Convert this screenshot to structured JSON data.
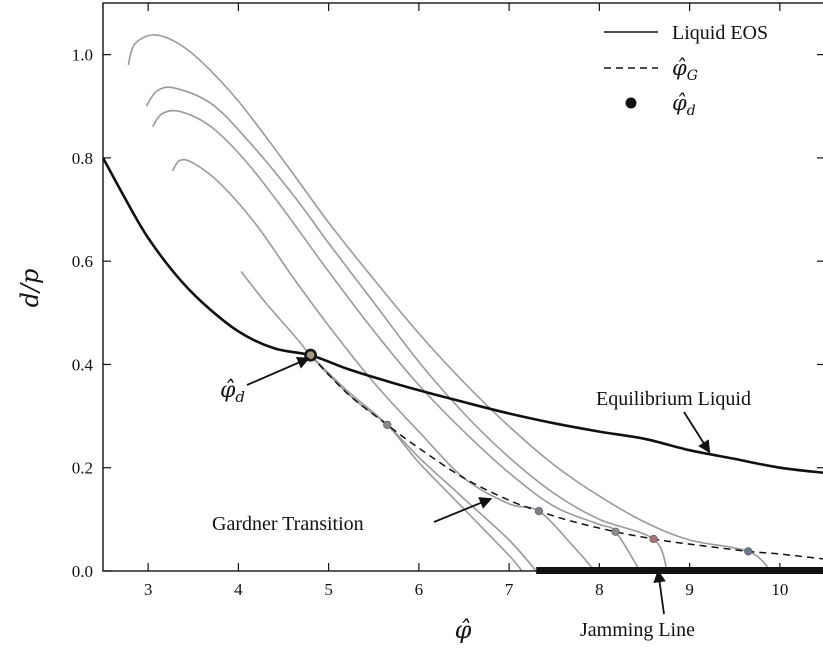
{
  "chart_data": {
    "type": "line",
    "xlabel": "φ̂",
    "ylabel": "d/p",
    "xlim": [
      2.5,
      10.5
    ],
    "ylim": [
      0.0,
      1.1
    ],
    "x_ticks": [
      3,
      4,
      5,
      6,
      7,
      8,
      9,
      10
    ],
    "y_ticks": [
      0.0,
      0.2,
      0.4,
      0.6,
      0.8,
      1.0
    ],
    "x_tick_labels": [
      "3",
      "4",
      "5",
      "6",
      "7",
      "8",
      "9",
      "10"
    ],
    "y_tick_labels": [
      "0.0",
      "0.2",
      "0.4",
      "0.6",
      "0.8",
      "1.0"
    ],
    "grid": false,
    "legend": {
      "placement": "top-right",
      "entries": [
        {
          "label": "Liquid EOS",
          "style": "solid"
        },
        {
          "label_main": "φ̂",
          "label_sub": "G",
          "style": "dashed"
        },
        {
          "label_main": "φ̂",
          "label_sub": "d",
          "style": "dot"
        }
      ]
    },
    "series": [
      {
        "style": "liquid",
        "color": "#111111",
        "x": [
          2.5,
          2.8,
          3.0,
          3.3,
          3.6,
          4.0,
          4.4,
          4.8,
          5.2,
          5.6,
          6.0,
          6.5,
          7.0,
          7.5,
          8.0,
          8.5,
          9.0,
          9.5,
          10.0,
          10.5
        ],
        "y": [
          0.8,
          0.704,
          0.645,
          0.575,
          0.52,
          0.464,
          0.431,
          0.418,
          0.392,
          0.37,
          0.35,
          0.327,
          0.305,
          0.286,
          0.27,
          0.256,
          0.234,
          0.217,
          0.2,
          0.19
        ]
      },
      {
        "style": "gardner",
        "color": "#111111",
        "x": [
          4.8,
          5.2,
          5.65,
          6.0,
          6.5,
          7.0,
          7.33,
          7.7,
          8.18,
          8.6,
          9.0,
          9.65,
          10.0,
          10.5
        ],
        "y": [
          0.418,
          0.345,
          0.283,
          0.238,
          0.18,
          0.137,
          0.116,
          0.096,
          0.076,
          0.062,
          0.052,
          0.038,
          0.033,
          0.023
        ]
      },
      {
        "style": "compression",
        "color": "#9a9a9a",
        "x": [
          4.03,
          4.3,
          4.6,
          4.8,
          5.0,
          5.3,
          5.65,
          6.0,
          6.5,
          7.0,
          7.3
        ],
        "y": [
          0.58,
          0.52,
          0.46,
          0.418,
          0.38,
          0.33,
          0.283,
          0.22,
          0.14,
          0.06,
          0.0
        ]
      },
      {
        "style": "compression",
        "color": "#9a9a9a",
        "x": [
          4.8,
          5.2,
          5.65,
          6.0,
          6.5,
          7.0,
          7.14
        ],
        "y": [
          0.418,
          0.35,
          0.283,
          0.21,
          0.12,
          0.03,
          0.0
        ]
      },
      {
        "style": "compression",
        "color": "#9a9a9a",
        "x": [
          3.27,
          3.35,
          3.5,
          3.8,
          4.2,
          4.6,
          5.0,
          5.5,
          6.0,
          6.5,
          7.0,
          7.33,
          7.7,
          7.95
        ],
        "y": [
          0.775,
          0.795,
          0.79,
          0.75,
          0.67,
          0.57,
          0.475,
          0.365,
          0.27,
          0.18,
          0.13,
          0.116,
          0.05,
          0.0
        ]
      },
      {
        "style": "compression",
        "color": "#9a9a9a",
        "x": [
          3.05,
          3.15,
          3.35,
          3.7,
          4.1,
          4.5,
          5.0,
          5.5,
          6.0,
          6.5,
          7.0,
          7.5,
          8.0,
          8.18,
          8.45
        ],
        "y": [
          0.86,
          0.885,
          0.89,
          0.86,
          0.79,
          0.7,
          0.58,
          0.465,
          0.36,
          0.27,
          0.19,
          0.125,
          0.09,
          0.076,
          0.0
        ]
      },
      {
        "style": "compression",
        "color": "#9a9a9a",
        "x": [
          2.98,
          3.1,
          3.3,
          3.7,
          4.1,
          4.6,
          5.0,
          5.5,
          6.0,
          6.5,
          7.0,
          7.5,
          8.0,
          8.6,
          8.75
        ],
        "y": [
          0.9,
          0.93,
          0.935,
          0.905,
          0.835,
          0.73,
          0.635,
          0.52,
          0.405,
          0.305,
          0.22,
          0.15,
          0.1,
          0.062,
          0.0
        ]
      },
      {
        "style": "compression",
        "color": "#9a9a9a",
        "x": [
          2.78,
          2.85,
          3.05,
          3.3,
          3.6,
          4.0,
          4.5,
          5.0,
          5.5,
          6.0,
          6.5,
          7.0,
          7.5,
          8.0,
          8.5,
          9.0,
          9.65,
          9.9
        ],
        "y": [
          0.98,
          1.02,
          1.038,
          1.025,
          0.985,
          0.91,
          0.795,
          0.675,
          0.565,
          0.46,
          0.365,
          0.28,
          0.205,
          0.145,
          0.095,
          0.06,
          0.038,
          0.0
        ]
      }
    ],
    "markers": {
      "phi_d": {
        "x": 4.8,
        "y": 0.418,
        "color": "#1a1a1a"
      },
      "gardner_points": [
        {
          "x": 5.65,
          "y": 0.283,
          "color": "#888888"
        },
        {
          "x": 7.33,
          "y": 0.116,
          "color": "#8a7a8f"
        },
        {
          "x": 8.18,
          "y": 0.076,
          "color": "#8c8c8c"
        },
        {
          "x": 8.6,
          "y": 0.062,
          "color": "#b07070"
        },
        {
          "x": 9.65,
          "y": 0.038,
          "color": "#6a7898"
        }
      ]
    },
    "jamming_line": {
      "x_start": 7.3,
      "x_end": 10.5,
      "y": 0.0
    },
    "annotations": [
      {
        "name": "phi-d-annotation",
        "text_main": "φ̂",
        "text_sub": "d",
        "arrow_to": {
          "x": 4.78,
          "y": 0.412
        }
      },
      {
        "name": "equilibrium-liquid-annotation",
        "text": "Equilibrium Liquid",
        "arrow_to": {
          "x": 9.22,
          "y": 0.23
        }
      },
      {
        "name": "gardner-transition-annotation",
        "text": "Gardner Transition",
        "arrow_to": {
          "x": 6.8,
          "y": 0.14
        }
      },
      {
        "name": "jamming-line-annotation",
        "text": "Jamming Line",
        "arrow_to": {
          "x": 8.65,
          "y": 0.0
        }
      }
    ]
  }
}
